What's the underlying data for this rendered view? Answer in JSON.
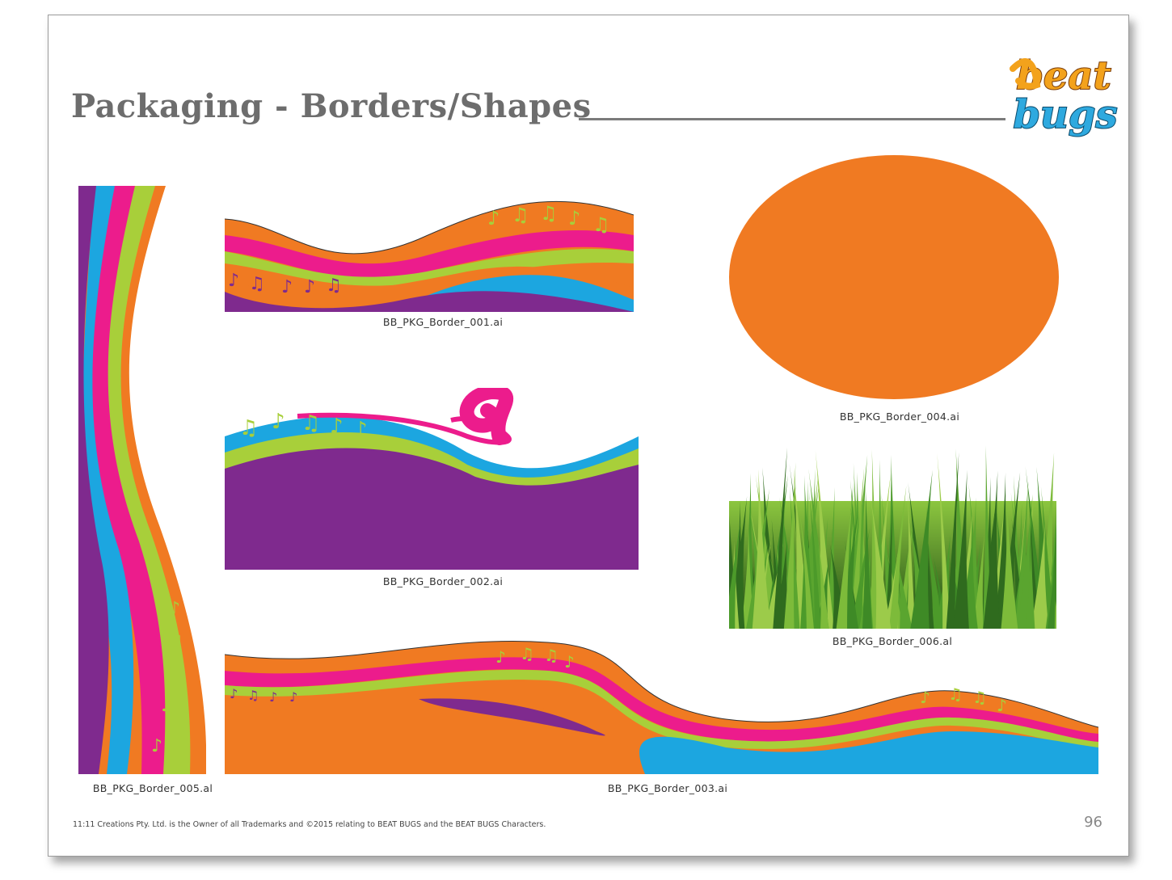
{
  "page": {
    "title": "Packaging - Borders/Shapes",
    "page_number": "96",
    "footer": "11:11 Creations Pty. Ltd. is the Owner of all Trademarks and ©2015 relating to BEAT BUGS and the BEAT BUGS Characters."
  },
  "logo": {
    "line1": "beat",
    "line2": "bugs"
  },
  "captions": {
    "border_001": "BB_PKG_Border_001.ai",
    "border_002": "BB_PKG_Border_002.ai",
    "border_003": "BB_PKG_Border_003.ai",
    "border_004": "BB_PKG_Border_004.ai",
    "border_005": "BB_PKG_Border_005.al",
    "border_006": "BB_PKG_Border_006.al"
  },
  "colors": {
    "orange": "#F07A22",
    "magenta": "#EC1C8C",
    "lime": "#A8CF3A",
    "cyan": "#1CA6E0",
    "purple": "#7F2A8E",
    "grass_dark": "#2F6B1E",
    "grass_light": "#8CC63F"
  }
}
